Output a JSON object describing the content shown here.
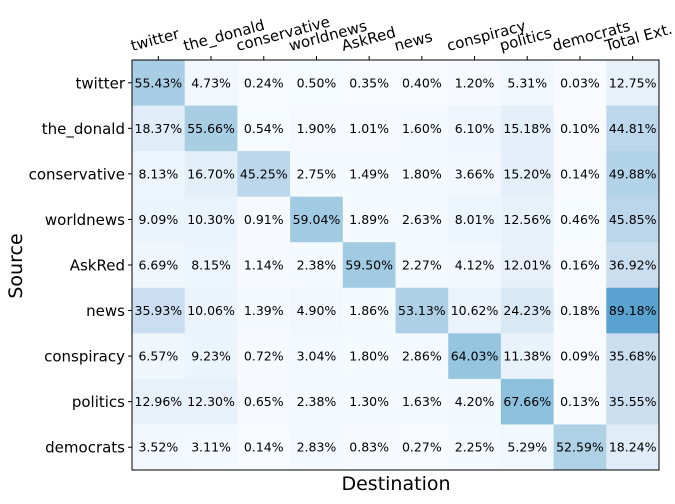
{
  "chart_data": {
    "type": "heatmap",
    "xlabel": "Destination",
    "ylabel": "Source",
    "x_categories": [
      "twitter",
      "the_donald",
      "conservative",
      "worldnews",
      "AskRed",
      "news",
      "conspiracy",
      "politics",
      "democrats",
      "Total Ext."
    ],
    "y_categories": [
      "twitter",
      "the_donald",
      "conservative",
      "worldnews",
      "AskRed",
      "news",
      "conspiracy",
      "politics",
      "democrats"
    ],
    "values": [
      [
        55.43,
        4.73,
        0.24,
        0.5,
        0.35,
        0.4,
        1.2,
        5.31,
        0.03,
        12.75
      ],
      [
        18.37,
        55.66,
        0.54,
        1.9,
        1.01,
        1.6,
        6.1,
        15.18,
        0.1,
        44.81
      ],
      [
        8.13,
        16.7,
        45.25,
        2.75,
        1.49,
        1.8,
        3.66,
        15.2,
        0.14,
        49.88
      ],
      [
        9.09,
        10.3,
        0.91,
        59.04,
        1.89,
        2.63,
        8.01,
        12.56,
        0.46,
        45.85
      ],
      [
        6.69,
        8.15,
        1.14,
        2.38,
        59.5,
        2.27,
        4.12,
        12.01,
        0.16,
        36.92
      ],
      [
        35.93,
        10.06,
        1.39,
        4.9,
        1.86,
        53.13,
        10.62,
        24.23,
        0.18,
        89.18
      ],
      [
        6.57,
        9.23,
        0.72,
        3.04,
        1.8,
        2.86,
        64.03,
        11.38,
        0.09,
        35.68
      ],
      [
        12.96,
        12.3,
        0.65,
        2.38,
        1.3,
        1.63,
        4.2,
        67.66,
        0.13,
        35.55
      ],
      [
        3.52,
        3.11,
        0.14,
        2.83,
        0.83,
        0.27,
        2.25,
        5.29,
        52.59,
        18.24
      ]
    ],
    "value_suffix": "%",
    "colormap": "Blues",
    "color_range": [
      0,
      100
    ],
    "grid": false
  }
}
